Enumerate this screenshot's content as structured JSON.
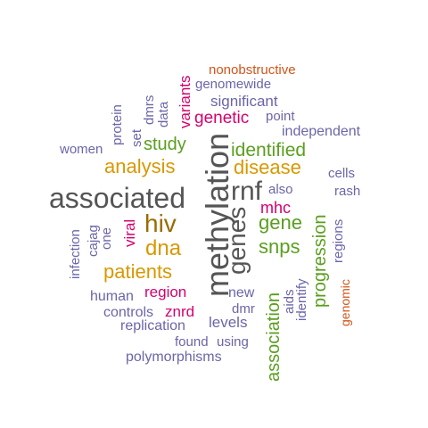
{
  "words": {
    "associated": "associated",
    "methylation": "methylation",
    "genes": "genes",
    "rnf": "rnf",
    "hiv": "hiv",
    "dna": "dna",
    "analysis": "analysis",
    "disease": "disease",
    "identified": "identified",
    "patients": "patients",
    "study": "study",
    "snps": "snps",
    "gene": "gene",
    "association": "association",
    "progression": "progression",
    "genetic": "genetic",
    "mhc": "mhc",
    "region": "region",
    "znrd": "znrd",
    "viral": "viral",
    "variants": "variants",
    "nonobstructive": "nonobstructive",
    "genomewide": "genomewide",
    "significant": "significant",
    "point": "point",
    "independent": "independent",
    "protein": "protein",
    "dmrs": "dmrs",
    "data": "data",
    "set": "set",
    "women": "women",
    "cells": "cells",
    "also": "also",
    "rash": "rash",
    "regions": "regions",
    "genomic": "genomic",
    "infection": "infection",
    "cajag": "cajag",
    "one": "one",
    "human": "human",
    "controls": "controls",
    "replication": "replication",
    "new": "new",
    "dmr": "dmr",
    "levels": "levels",
    "aids": "aids",
    "identify": "identify",
    "found": "found",
    "using": "using",
    "polymorphisms": "polymorphisms"
  },
  "colors": {
    "green": "#5a9e1e",
    "orange": "#d89800",
    "gray": "#555555",
    "purple": "#6a66a8",
    "pink": "#d4006e",
    "brown": "#9a6b00",
    "red": "#d2541a"
  }
}
